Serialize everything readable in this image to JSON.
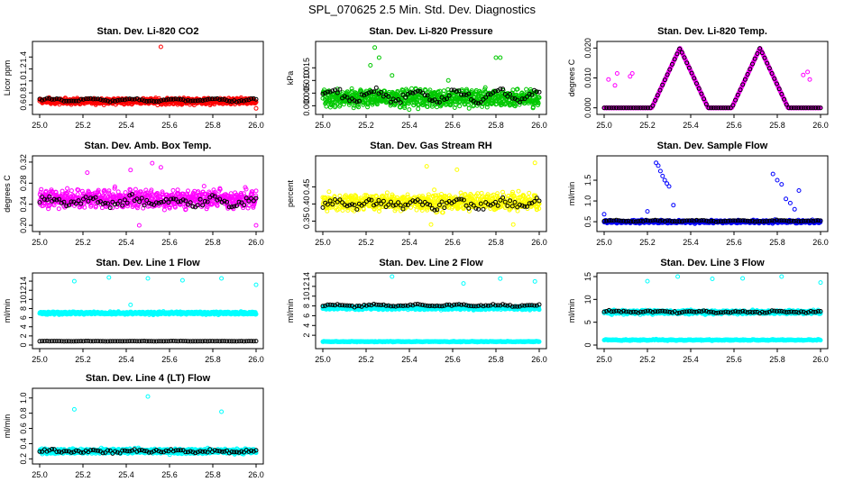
{
  "title": "SPL_070625  2.5 Min. Std. Dev. Diagnostics",
  "colors": {
    "red": "#ff0000",
    "green": "#00c800",
    "magenta": "#ff00ff",
    "yellow": "#ffff00",
    "blue": "#0000ff",
    "cyan": "#00ffff",
    "black": "#000000"
  },
  "chart_data": [
    {
      "type": "scatter",
      "title": "Stan. Dev. Li-820 CO2",
      "ylabel": "Licor ppm",
      "xlim": [
        25.0,
        26.0
      ],
      "ylim": [
        0.5,
        1.6
      ],
      "xticks": [
        "25.0",
        "25.2",
        "25.4",
        "25.6",
        "25.8",
        "26.0"
      ],
      "yticks": [
        {
          "v": 0.6,
          "label": "0.6"
        },
        {
          "v": 0.8,
          "label": "0.8"
        },
        {
          "v": 1.0,
          "label": "1.0"
        },
        {
          "v": 1.2,
          "label": "1.2"
        },
        {
          "v": 1.4,
          "label": "1.4"
        }
      ],
      "series": [
        {
          "name": "line",
          "color": "red",
          "n": 900,
          "base": 0.66,
          "spread": 0.05,
          "jitter": 0.05,
          "outliers": [
            [
              25.56,
              1.57
            ],
            [
              26.0,
              0.54
            ]
          ]
        },
        {
          "name": "reference",
          "color": "black",
          "n": 90,
          "base": 0.68,
          "spread": 0.04,
          "jitter": 0.02
        }
      ]
    },
    {
      "type": "scatter",
      "title": "Stan. Dev. Li-820 Pressure",
      "ylabel": "kPa",
      "xlim": [
        25.0,
        26.0
      ],
      "ylim": [
        -0.002,
        0.024
      ],
      "xticks": [
        "25.0",
        "25.2",
        "25.4",
        "25.6",
        "25.8",
        "26.0"
      ],
      "yticks": [
        {
          "v": 0.0,
          "label": "0.000"
        },
        {
          "v": 0.005,
          "label": "0.005"
        },
        {
          "v": 0.01,
          "label": "0.010"
        },
        {
          "v": 0.015,
          "label": "0.015"
        }
      ],
      "series": [
        {
          "name": "line",
          "color": "green",
          "n": 800,
          "base": 0.003,
          "spread": 0.004,
          "jitter": 0.003,
          "outliers": [
            [
              25.24,
              0.023
            ],
            [
              25.26,
              0.019
            ],
            [
              25.22,
              0.016
            ],
            [
              25.8,
              0.019
            ],
            [
              25.82,
              0.019
            ],
            [
              25.32,
              0.012
            ],
            [
              25.58,
              0.01
            ]
          ]
        },
        {
          "name": "reference",
          "color": "black",
          "n": 90,
          "base": 0.004,
          "spread": 0.004,
          "jitter": 0.002
        }
      ]
    },
    {
      "type": "scatter",
      "title": "Stan. Dev. Li-820 Temp.",
      "ylabel": "degrees C",
      "xlim": [
        25.0,
        26.0
      ],
      "ylim": [
        -0.001,
        0.021
      ],
      "xticks": [
        "25.0",
        "25.2",
        "25.4",
        "25.6",
        "25.8",
        "26.0"
      ],
      "yticks": [
        {
          "v": 0.0,
          "label": "0.000"
        },
        {
          "v": 0.01,
          "label": "0.010"
        },
        {
          "v": 0.02,
          "label": "0.020"
        }
      ],
      "series": [
        {
          "name": "line",
          "color": "magenta",
          "n": 600,
          "base": 0.0,
          "spread": 0.0,
          "jitter": 0.0,
          "peaks": [
            [
              25.35,
              0.02,
              0.065
            ],
            [
              25.72,
              0.02,
              0.065
            ]
          ],
          "outliers": [
            [
              25.02,
              0.0095
            ],
            [
              25.06,
              0.0115
            ],
            [
              25.05,
              0.0075
            ],
            [
              25.12,
              0.0105
            ],
            [
              25.13,
              0.0115
            ],
            [
              25.92,
              0.011
            ],
            [
              25.94,
              0.012
            ],
            [
              25.95,
              0.0095
            ]
          ]
        },
        {
          "name": "reference",
          "color": "black",
          "n": 90,
          "base": 0.0,
          "spread": 0.0,
          "jitter": 0.0,
          "peaks": [
            [
              25.35,
              0.02,
              0.065
            ],
            [
              25.72,
              0.02,
              0.065
            ]
          ]
        }
      ]
    },
    {
      "type": "scatter",
      "title": "Stan. Dev. Amb. Box Temp.",
      "ylabel": "degrees C",
      "xlim": [
        25.0,
        26.0
      ],
      "ylim": [
        0.195,
        0.325
      ],
      "xticks": [
        "25.0",
        "25.2",
        "25.4",
        "25.6",
        "25.8",
        "26.0"
      ],
      "yticks": [
        {
          "v": 0.2,
          "label": "0.20"
        },
        {
          "v": 0.24,
          "label": "0.24"
        },
        {
          "v": 0.28,
          "label": "0.28"
        },
        {
          "v": 0.32,
          "label": "0.32"
        }
      ],
      "series": [
        {
          "name": "line",
          "color": "magenta",
          "n": 700,
          "base": 0.25,
          "spread": 0.015,
          "jitter": 0.02,
          "outliers": [
            [
              25.52,
              0.318
            ],
            [
              25.56,
              0.31
            ],
            [
              25.42,
              0.305
            ],
            [
              25.22,
              0.3
            ],
            [
              25.46,
              0.2
            ],
            [
              26.0,
              0.2
            ]
          ]
        },
        {
          "name": "reference",
          "color": "black",
          "n": 90,
          "base": 0.245,
          "spread": 0.012,
          "jitter": 0.012
        }
      ]
    },
    {
      "type": "scatter",
      "title": "Stan. Dev. Gas Stream RH",
      "ylabel": "percent",
      "xlim": [
        25.0,
        26.0
      ],
      "ylim": [
        0.33,
        0.53
      ],
      "xticks": [
        "25.0",
        "25.2",
        "25.4",
        "25.6",
        "25.8",
        "26.0"
      ],
      "yticks": [
        {
          "v": 0.35,
          "label": "0.35"
        },
        {
          "v": 0.4,
          "label": "0.40"
        },
        {
          "v": 0.45,
          "label": "0.45"
        }
      ],
      "series": [
        {
          "name": "line",
          "color": "yellow",
          "n": 700,
          "base": 0.405,
          "spread": 0.02,
          "jitter": 0.03,
          "outliers": [
            [
              25.98,
              0.52
            ],
            [
              25.48,
              0.51
            ],
            [
              25.62,
              0.5
            ],
            [
              25.5,
              0.34
            ],
            [
              25.88,
              0.34
            ]
          ]
        },
        {
          "name": "reference",
          "color": "black",
          "n": 90,
          "base": 0.4,
          "spread": 0.015,
          "jitter": 0.018
        }
      ]
    },
    {
      "type": "scatter",
      "title": "Stan. Dev. Sample Flow",
      "ylabel": "ml/min",
      "xlim": [
        25.0,
        26.0
      ],
      "ylim": [
        0.35,
        2.0
      ],
      "xticks": [
        "25.0",
        "25.2",
        "25.4",
        "25.6",
        "25.8",
        "26.0"
      ],
      "yticks": [
        {
          "v": 0.5,
          "label": "0.5"
        },
        {
          "v": 1.0,
          "label": "1.0"
        },
        {
          "v": 1.5,
          "label": "1.5"
        }
      ],
      "series": [
        {
          "name": "line",
          "color": "blue",
          "n": 800,
          "base": 0.5,
          "spread": 0.03,
          "jitter": 0.04,
          "outliers": [
            [
              25.24,
              1.92
            ],
            [
              25.25,
              1.85
            ],
            [
              25.26,
              1.72
            ],
            [
              25.27,
              1.6
            ],
            [
              25.28,
              1.5
            ],
            [
              25.29,
              1.42
            ],
            [
              25.3,
              1.35
            ],
            [
              25.32,
              0.9
            ],
            [
              25.2,
              0.75
            ],
            [
              25.78,
              1.65
            ],
            [
              25.8,
              1.5
            ],
            [
              25.82,
              1.4
            ],
            [
              25.84,
              1.05
            ],
            [
              25.86,
              0.95
            ],
            [
              25.9,
              1.25
            ],
            [
              25.88,
              0.8
            ],
            [
              25.0,
              0.68
            ]
          ]
        },
        {
          "name": "reference",
          "color": "black",
          "n": 90,
          "base": 0.52,
          "spread": 0.02,
          "jitter": 0.02
        }
      ]
    },
    {
      "type": "scatter",
      "title": "Stan. Dev. Line 1 Flow",
      "ylabel": "ml/min",
      "xlim": [
        25.0,
        26.0
      ],
      "ylim": [
        0,
        15
      ],
      "xticks": [
        "25.0",
        "25.2",
        "25.4",
        "25.6",
        "25.8",
        "26.0"
      ],
      "yticks": [
        {
          "v": 0,
          "label": "0"
        },
        {
          "v": 2,
          "label": "2"
        },
        {
          "v": 4,
          "label": "4"
        },
        {
          "v": 6,
          "label": "6"
        },
        {
          "v": 8,
          "label": "8"
        },
        {
          "v": 10,
          "label": "10"
        },
        {
          "v": 12,
          "label": "12"
        },
        {
          "v": 14,
          "label": "14"
        }
      ],
      "series": [
        {
          "name": "line",
          "color": "cyan",
          "n": 900,
          "base": 7.0,
          "spread": 0.2,
          "jitter": 0.35,
          "outliers": [
            [
              25.16,
              14.0
            ],
            [
              25.32,
              14.8
            ],
            [
              25.5,
              14.6
            ],
            [
              25.66,
              14.2
            ],
            [
              25.84,
              14.6
            ],
            [
              26.0,
              13.2
            ],
            [
              25.42,
              8.8
            ]
          ]
        },
        {
          "name": "reference",
          "color": "black",
          "n": 90,
          "base": 0.85,
          "spread": 0.05,
          "jitter": 0.05
        }
      ]
    },
    {
      "type": "scatter",
      "title": "Stan. Dev. Line 2 Flow",
      "ylabel": "ml/min",
      "xlim": [
        25.0,
        26.0
      ],
      "ylim": [
        0,
        14
      ],
      "xticks": [
        "25.0",
        "25.2",
        "25.4",
        "25.6",
        "25.8",
        "26.0"
      ],
      "yticks": [
        {
          "v": 2,
          "label": "2"
        },
        {
          "v": 4,
          "label": "4"
        },
        {
          "v": 6,
          "label": "6"
        },
        {
          "v": 8,
          "label": "8"
        },
        {
          "v": 10,
          "label": "10"
        },
        {
          "v": 12,
          "label": "12"
        },
        {
          "v": 14,
          "label": "14"
        }
      ],
      "series": [
        {
          "name": "line",
          "color": "cyan",
          "n": 900,
          "base": 7.6,
          "spread": 0.3,
          "jitter": 0.45,
          "outliers": [
            [
              25.32,
              14.0
            ],
            [
              25.65,
              12.6
            ],
            [
              25.82,
              13.6
            ],
            [
              25.98,
              13.0
            ]
          ]
        },
        {
          "name": "line-low",
          "color": "cyan",
          "n": 400,
          "base": 0.7,
          "spread": 0.05,
          "jitter": 0.1
        },
        {
          "name": "reference",
          "color": "black",
          "n": 90,
          "base": 8.1,
          "spread": 0.25,
          "jitter": 0.25
        }
      ]
    },
    {
      "type": "scatter",
      "title": "Stan. Dev. Line 3 Flow",
      "ylabel": "ml/min",
      "xlim": [
        25.0,
        26.0
      ],
      "ylim": [
        0,
        15
      ],
      "xticks": [
        "25.0",
        "25.2",
        "25.4",
        "25.6",
        "25.8",
        "26.0"
      ],
      "yticks": [
        {
          "v": 0,
          "label": "0"
        },
        {
          "v": 5,
          "label": "5"
        },
        {
          "v": 10,
          "label": "10"
        },
        {
          "v": 15,
          "label": "15"
        }
      ],
      "series": [
        {
          "name": "line",
          "color": "cyan",
          "n": 900,
          "base": 7.2,
          "spread": 0.3,
          "jitter": 0.5,
          "outliers": [
            [
              25.2,
              14.0
            ],
            [
              25.34,
              15.0
            ],
            [
              25.5,
              14.5
            ],
            [
              25.64,
              14.6
            ],
            [
              25.82,
              15.0
            ],
            [
              26.0,
              13.7
            ]
          ]
        },
        {
          "name": "line-low",
          "color": "cyan",
          "n": 400,
          "base": 1.1,
          "spread": 0.1,
          "jitter": 0.15,
          "peaks": [
            [
              25.24,
              1.3,
              0.02
            ]
          ]
        },
        {
          "name": "reference",
          "color": "black",
          "n": 90,
          "base": 7.3,
          "spread": 0.3,
          "jitter": 0.3
        }
      ]
    },
    {
      "type": "scatter",
      "title": "Stan. Dev. Line 4 (LT) Flow",
      "ylabel": "ml/min",
      "xlim": [
        25.0,
        26.0
      ],
      "ylim": [
        0.18,
        1.08
      ],
      "xticks": [
        "25.0",
        "25.2",
        "25.4",
        "25.6",
        "25.8",
        "26.0"
      ],
      "yticks": [
        {
          "v": 0.2,
          "label": "0.2"
        },
        {
          "v": 0.4,
          "label": "0.4"
        },
        {
          "v": 0.6,
          "label": "0.6"
        },
        {
          "v": 0.8,
          "label": "0.8"
        },
        {
          "v": 1.0,
          "label": "1.0"
        }
      ],
      "series": [
        {
          "name": "line",
          "color": "cyan",
          "n": 900,
          "base": 0.3,
          "spread": 0.02,
          "jitter": 0.04,
          "outliers": [
            [
              25.16,
              0.85
            ],
            [
              25.5,
              1.02
            ],
            [
              25.84,
              0.82
            ]
          ]
        },
        {
          "name": "reference",
          "color": "black",
          "n": 90,
          "base": 0.3,
          "spread": 0.02,
          "jitter": 0.03
        }
      ]
    }
  ]
}
